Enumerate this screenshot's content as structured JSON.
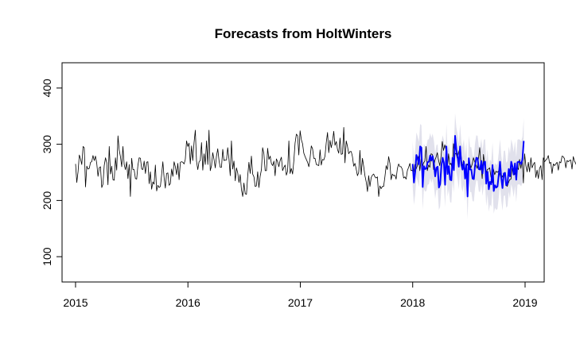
{
  "chart_data": {
    "type": "line",
    "title": "Forecasts from HoltWinters",
    "xlabel": "",
    "ylabel": "",
    "xlim": [
      2014.88,
      2019.17
    ],
    "ylim": [
      55,
      445
    ],
    "x_ticks": [
      2015,
      2016,
      2017,
      2018,
      2019
    ],
    "x_tick_labels": [
      "2015",
      "2016",
      "2017",
      "2018",
      "2019"
    ],
    "y_ticks": [
      100,
      200,
      300,
      400
    ],
    "y_tick_labels": [
      "100",
      "200",
      "300",
      "400"
    ],
    "grid": false,
    "legend": "none",
    "colors": {
      "observed": "#000000",
      "forecast": "#0000ff",
      "interval": "#c8c8dc"
    },
    "series": [
      {
        "role": "observed",
        "x_start": 2015.0,
        "x_step": 0.0111,
        "values": [
          265,
          232,
          251,
          281,
          274,
          264,
          296,
          294,
          224,
          261,
          256,
          257,
          268,
          269,
          280,
          271,
          279,
          266,
          243,
          258,
          260,
          223,
          229,
          262,
          276,
          267,
          228,
          296,
          247,
          261,
          237,
          236,
          276,
          254,
          315,
          290,
          278,
          260,
          296,
          264,
          255,
          269,
          239,
          264,
          207,
          275,
          255,
          255,
          239,
          238,
          262,
          276,
          275,
          256,
          255,
          270,
          248,
          268,
          269,
          230,
          251,
          220,
          233,
          229,
          263,
          217,
          227,
          223,
          225,
          245,
          269,
          240,
          222,
          248,
          249,
          227,
          230,
          256,
          243,
          269,
          260,
          246,
          266,
          237,
          268,
          269,
          268,
          265,
          273,
          306,
          296,
          302,
          265,
          297,
          271,
          303,
          325,
          270,
          255,
          269,
          271,
          303,
          254,
          283,
          264,
          306,
          264,
          325,
          253,
          262,
          285,
          273,
          258,
          279,
          292,
          271,
          259,
          259,
          291,
          271,
          272,
          272,
          294,
          274,
          244,
          306,
          256,
          270,
          235,
          258,
          249,
          232,
          246,
          219,
          207,
          231,
          212,
          211,
          243,
          268,
          248,
          279,
          247,
          242,
          225,
          226,
          251,
          223,
          243,
          255,
          294,
          283,
          253,
          253,
          293,
          273,
          279,
          266,
          262,
          270,
          244,
          274,
          269,
          260,
          271,
          277,
          253,
          259,
          263,
          245,
          252,
          306,
          248,
          257,
          247,
          270,
          302,
          318,
          315,
          281,
          324,
          308,
          301,
          284,
          278,
          273,
          268,
          260,
          275,
          297,
          292,
          275,
          275,
          264,
          263,
          262,
          290,
          263,
          273,
          272,
          279,
          303,
          321,
          285,
          307,
          294,
          306,
          323,
          298,
          305,
          291,
          284,
          311,
          282,
          283,
          330,
          267,
          306,
          296,
          283,
          287,
          287,
          278,
          261,
          266,
          256,
          244,
          250,
          289,
          246,
          275,
          260,
          244,
          233,
          216,
          244,
          225,
          241,
          245,
          247,
          242,
          240,
          242,
          207,
          226,
          221,
          225,
          225,
          242,
          262,
          255,
          278,
          266,
          237,
          247,
          244,
          245,
          238,
          257,
          265,
          260,
          260,
          255,
          240,
          242,
          238,
          253,
          259,
          266,
          253,
          254,
          246,
          264,
          256,
          262,
          279,
          253,
          274,
          259,
          267,
          270,
          296,
          253,
          263,
          259,
          283,
          282,
          255,
          271,
          277,
          285,
          272,
          262,
          279,
          305,
          289,
          299,
          289,
          256,
          283,
          264,
          266,
          255,
          301,
          282,
          284,
          275,
          285,
          292,
          280,
          260,
          271,
          249,
          261,
          265,
          260,
          267,
          258,
          265,
          276,
          269,
          263,
          257,
          275,
          294,
          264,
          239,
          282,
          264,
          246,
          255,
          256,
          258,
          242,
          232,
          256,
          246,
          252,
          250,
          252,
          249,
          240,
          244,
          238,
          250,
          229,
          225,
          231,
          237,
          238,
          258,
          252,
          246,
          255,
          260,
          255,
          273,
          257,
          275,
          231,
          283,
          262,
          251,
          268,
          251,
          276,
          258,
          264,
          268,
          241,
          254,
          239,
          257,
          262,
          237,
          276,
          269,
          272,
          274,
          280,
          266,
          268,
          248,
          265,
          262,
          265,
          268,
          254,
          269,
          267,
          279,
          278,
          274,
          258,
          271,
          269,
          271,
          272,
          256,
          278,
          270,
          266,
          259,
          262,
          270
        ]
      },
      {
        "role": "forecast",
        "x_start": 2018.0,
        "x_step": 0.0111,
        "values": [
          265,
          232,
          251,
          281,
          274,
          264,
          296,
          294,
          224,
          261,
          256,
          257,
          268,
          269,
          280,
          271,
          279,
          266,
          243,
          258,
          260,
          223,
          229,
          262,
          276,
          267,
          228,
          296,
          247,
          261,
          237,
          236,
          276,
          254,
          315,
          290,
          278,
          260,
          296,
          264,
          255,
          269,
          239,
          264,
          207,
          275,
          255,
          255,
          239,
          238,
          262,
          276,
          275,
          256,
          255,
          270,
          248,
          268,
          269,
          230,
          251,
          220,
          233,
          229,
          263,
          217,
          227,
          223,
          225,
          245,
          269,
          240,
          222,
          248,
          249,
          227,
          230,
          256,
          243,
          269,
          260,
          246,
          266,
          237,
          268,
          269,
          268,
          265,
          273,
          306
        ],
        "lower": [
          225,
          192,
          211,
          241,
          234,
          224,
          256,
          254,
          184,
          221,
          216,
          217,
          228,
          229,
          240,
          231,
          239,
          226,
          203,
          218,
          220,
          183,
          189,
          222,
          236,
          227,
          188,
          256,
          207,
          221,
          197,
          196,
          236,
          214,
          275,
          250,
          238,
          220,
          256,
          224,
          215,
          229,
          199,
          224,
          167,
          235,
          215,
          215,
          199,
          198,
          222,
          236,
          235,
          216,
          215,
          230,
          208,
          228,
          229,
          190,
          211,
          180,
          193,
          189,
          223,
          177,
          187,
          183,
          185,
          205,
          229,
          200,
          182,
          208,
          209,
          187,
          190,
          216,
          203,
          229,
          220,
          206,
          226,
          197,
          228,
          229,
          228,
          225,
          233,
          266
        ],
        "upper": [
          305,
          272,
          291,
          321,
          314,
          304,
          336,
          334,
          264,
          301,
          296,
          297,
          308,
          309,
          320,
          311,
          319,
          306,
          283,
          298,
          300,
          263,
          269,
          302,
          316,
          307,
          268,
          336,
          287,
          301,
          277,
          276,
          316,
          294,
          355,
          330,
          318,
          300,
          336,
          304,
          295,
          309,
          279,
          304,
          247,
          315,
          295,
          295,
          279,
          278,
          302,
          316,
          315,
          296,
          295,
          310,
          288,
          308,
          309,
          270,
          291,
          260,
          273,
          269,
          303,
          257,
          267,
          263,
          265,
          285,
          309,
          280,
          262,
          288,
          289,
          267,
          270,
          296,
          283,
          309,
          300,
          286,
          306,
          277,
          308,
          309,
          308,
          305,
          313,
          346
        ]
      }
    ]
  }
}
